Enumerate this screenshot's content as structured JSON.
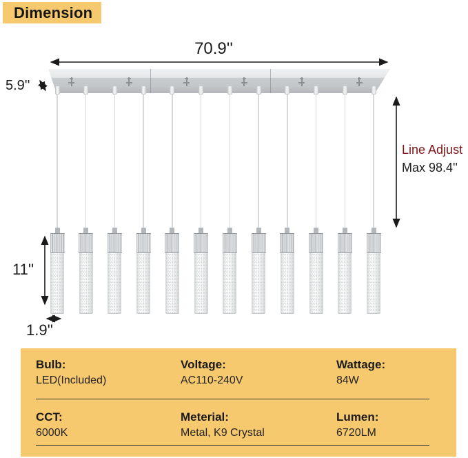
{
  "colors": {
    "accent_yellow": "#F7C96E",
    "line_adjust_red": "#7D1517",
    "text_dark": "#1C1C1C"
  },
  "header": {
    "title": "Dimension"
  },
  "diagram": {
    "canopy_width_label": "70.9''",
    "canopy_depth_label": "5.9''",
    "pendant_height_label": "11''",
    "pendant_diameter_label": "1.9''",
    "line_adjust_title": "Line Adjust",
    "line_adjust_value": "Max 98.4''",
    "pendant_count": 12
  },
  "specs": {
    "rows": [
      [
        {
          "label": "Bulb:",
          "value": "LED(Included)"
        },
        {
          "label": "Voltage:",
          "value": "AC110-240V"
        },
        {
          "label": "Wattage:",
          "value": "84W"
        }
      ],
      [
        {
          "label": "CCT:",
          "value": "6000K"
        },
        {
          "label": "Meterial:",
          "value": "Metal, K9 Crystal"
        },
        {
          "label": "Lumen:",
          "value": "6720LM"
        }
      ]
    ]
  }
}
